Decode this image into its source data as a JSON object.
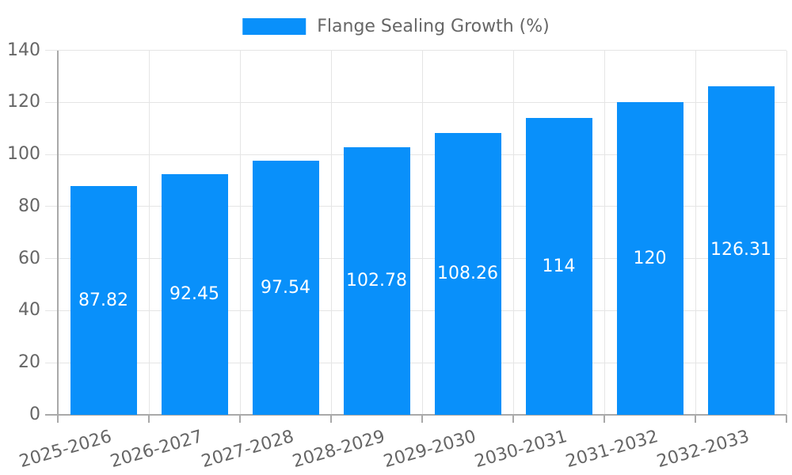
{
  "chart_data": {
    "type": "bar",
    "title": "",
    "legend": {
      "label": "Flange Sealing Growth (%)",
      "position": "top"
    },
    "categories": [
      "2025-2026",
      "2026-2027",
      "2027-2028",
      "2028-2029",
      "2029-2030",
      "2030-2031",
      "2031-2032",
      "2032-2033"
    ],
    "series": [
      {
        "name": "Flange Sealing Growth (%)",
        "values": [
          87.82,
          92.45,
          97.54,
          102.78,
          108.26,
          114,
          120,
          126.31
        ],
        "value_labels": [
          "87.82",
          "92.45",
          "97.54",
          "102.78",
          "108.26",
          "114",
          "120",
          "126.31"
        ]
      }
    ],
    "xlabel": "",
    "ylabel": "",
    "ylim": [
      0,
      140
    ],
    "yticks": [
      0,
      20,
      40,
      60,
      80,
      100,
      120,
      140
    ],
    "grid": true,
    "value_labels_inside_bars": true,
    "colors": {
      "bar": "#0990fa",
      "grid": "#e5e5e5",
      "axis": "#a9a9a9",
      "tick_text": "#666666",
      "legend_text": "#666666",
      "value_text": "#ffffff",
      "background": "#ffffff"
    }
  }
}
